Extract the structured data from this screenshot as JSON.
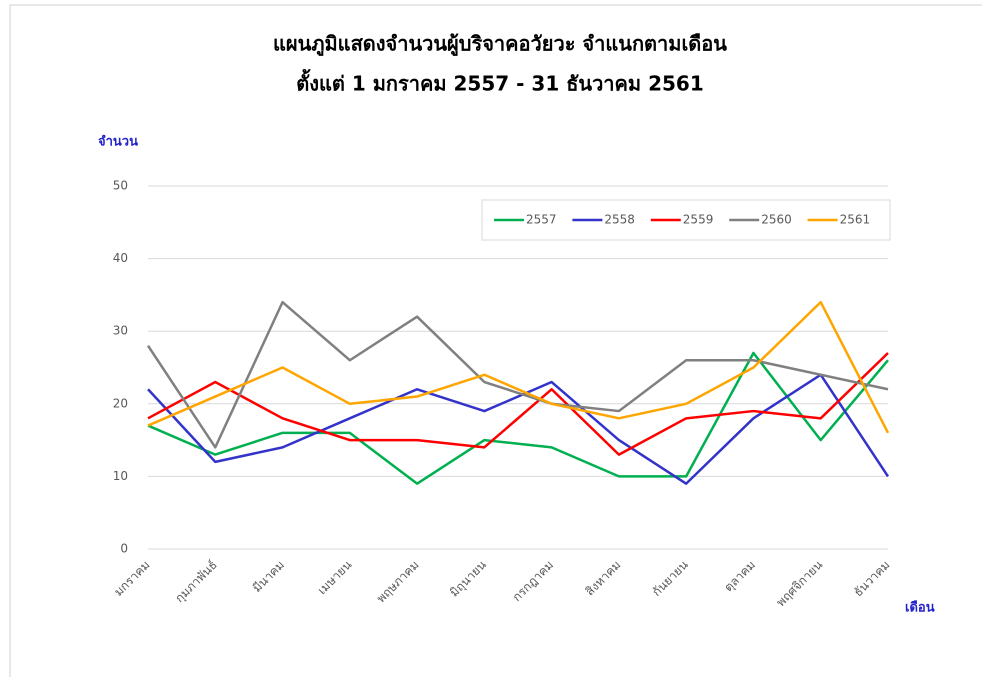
{
  "chart_data": {
    "type": "line",
    "title": "แผนภูมิแสดงจำนวนผู้บริจาคอวัยวะ จำแนกตามเดือน",
    "subtitle": "ตั้งแต่ 1 มกราคม 2557 - 31 ธันวาคม 2561",
    "y_label": "จำนวน",
    "x_label": "เดือน",
    "categories": [
      "มกราคม",
      "กุมภาพันธ์",
      "มีนาคม",
      "เมษายน",
      "พฤษภาคม",
      "มิถุนายน",
      "กรกฎาคม",
      "สิงหาคม",
      "กันยายน",
      "ตุลาคม",
      "พฤศจิกายน",
      "ธันวาคม"
    ],
    "series": [
      {
        "name": "2557",
        "color": "#00b050",
        "values": [
          17,
          13,
          16,
          16,
          9,
          15,
          14,
          10,
          10,
          27,
          15,
          26
        ]
      },
      {
        "name": "2558",
        "color": "#3333cc",
        "values": [
          22,
          12,
          14,
          18,
          22,
          19,
          23,
          15,
          9,
          18,
          24,
          10
        ]
      },
      {
        "name": "2559",
        "color": "#ff0000",
        "values": [
          18,
          23,
          18,
          15,
          15,
          14,
          22,
          13,
          18,
          19,
          18,
          27
        ]
      },
      {
        "name": "2560",
        "color": "#808080",
        "values": [
          28,
          14,
          34,
          26,
          32,
          23,
          20,
          19,
          26,
          26,
          24,
          22
        ]
      },
      {
        "name": "2561",
        "color": "#ffa500",
        "values": [
          17,
          21,
          25,
          20,
          21,
          24,
          20,
          18,
          20,
          25,
          34,
          16
        ]
      }
    ],
    "ylim": [
      0,
      50
    ],
    "yticks": [
      0,
      10,
      20,
      30,
      40,
      50
    ],
    "grid": true,
    "legend": "top-right"
  }
}
